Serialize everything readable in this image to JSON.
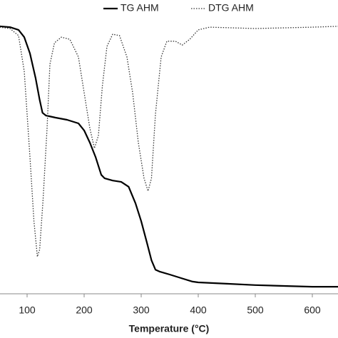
{
  "chart_data": {
    "type": "line",
    "xlabel": "Temperature (°C)",
    "xlim": [
      52.5,
      645
    ],
    "xticks": [
      100,
      200,
      300,
      400,
      500,
      600
    ],
    "ylim": [
      0,
      100
    ],
    "series": [
      {
        "name": "TG AHM",
        "color": "#000000",
        "style": "solid",
        "x": [
          52,
          70,
          85,
          95,
          105,
          115,
          122,
          127,
          133,
          150,
          170,
          190,
          200,
          210,
          220,
          230,
          236,
          250,
          265,
          278,
          290,
          300,
          310,
          318,
          325,
          332,
          350,
          370,
          390,
          400,
          450,
          500,
          550,
          600,
          645
        ],
        "values": [
          98.7,
          98.4,
          97.4,
          94.7,
          88.7,
          79.5,
          71.6,
          66.8,
          65.8,
          65.0,
          64.2,
          62.9,
          60.3,
          55.8,
          50.5,
          43.9,
          42.6,
          41.8,
          41.3,
          39.5,
          33.4,
          26.8,
          18.9,
          12.4,
          8.9,
          8.2,
          7.1,
          5.8,
          4.5,
          4.2,
          3.7,
          3.2,
          2.9,
          2.6,
          2.6
        ]
      },
      {
        "name": "DTG AHM",
        "color": "#333333",
        "style": "dotted",
        "x": [
          52,
          70,
          85,
          95,
          105,
          112,
          118,
          122,
          128,
          135,
          140,
          148,
          160,
          175,
          190,
          200,
          210,
          218,
          225,
          232,
          240,
          250,
          262,
          275,
          285,
          295,
          305,
          312,
          318,
          325,
          335,
          345,
          360,
          372,
          385,
          400,
          420,
          500,
          600,
          645
        ],
        "values": [
          98.4,
          97.9,
          95.3,
          82.1,
          50.5,
          26.8,
          13.7,
          16.3,
          34.7,
          61.1,
          84.7,
          92.6,
          94.7,
          93.9,
          87.4,
          74.2,
          61.1,
          53.7,
          58.4,
          76.8,
          91.3,
          95.8,
          95.3,
          87.4,
          74.2,
          55.8,
          42.6,
          37.9,
          42.6,
          66.3,
          87.4,
          93.2,
          93.2,
          91.8,
          93.9,
          97.4,
          98.4,
          97.9,
          98.4,
          98.7
        ]
      }
    ]
  }
}
